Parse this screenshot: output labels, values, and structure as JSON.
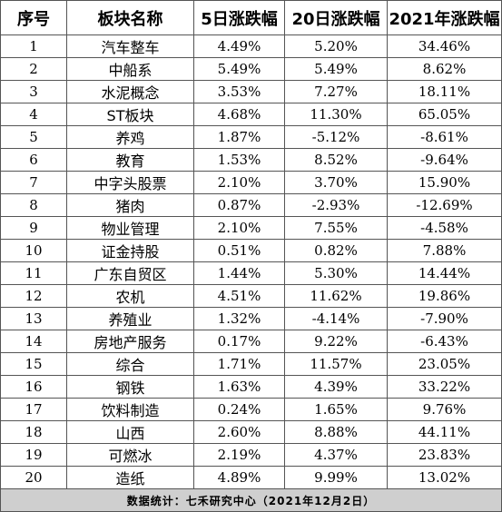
{
  "headers": [
    "序号",
    "板块名称",
    "5日涨跌幅",
    "20日涨跌幅",
    "2021年涨跌幅"
  ],
  "rows": [
    {
      "no": "1",
      "name": "汽车整车",
      "d5": "4.49%",
      "d20": "5.20%",
      "y2021": "34.46%"
    },
    {
      "no": "2",
      "name": "中船系",
      "d5": "5.49%",
      "d20": "5.49%",
      "y2021": "8.62%"
    },
    {
      "no": "3",
      "name": "水泥概念",
      "d5": "3.53%",
      "d20": "7.27%",
      "y2021": "18.11%"
    },
    {
      "no": "4",
      "name": "ST板块",
      "d5": "4.68%",
      "d20": "11.30%",
      "y2021": "65.05%"
    },
    {
      "no": "5",
      "name": "养鸡",
      "d5": "1.87%",
      "d20": "-5.12%",
      "y2021": "-8.61%"
    },
    {
      "no": "6",
      "name": "教育",
      "d5": "1.53%",
      "d20": "8.52%",
      "y2021": "-9.64%"
    },
    {
      "no": "7",
      "name": "中字头股票",
      "d5": "2.10%",
      "d20": "3.70%",
      "y2021": "15.90%"
    },
    {
      "no": "8",
      "name": "猪肉",
      "d5": "0.87%",
      "d20": "-2.93%",
      "y2021": "-12.69%"
    },
    {
      "no": "9",
      "name": "物业管理",
      "d5": "2.10%",
      "d20": "7.55%",
      "y2021": "-4.58%"
    },
    {
      "no": "10",
      "name": "证金持股",
      "d5": "0.51%",
      "d20": "0.82%",
      "y2021": "7.88%"
    },
    {
      "no": "11",
      "name": "广东自贸区",
      "d5": "1.44%",
      "d20": "5.30%",
      "y2021": "14.44%"
    },
    {
      "no": "12",
      "name": "农机",
      "d5": "4.51%",
      "d20": "11.62%",
      "y2021": "19.86%"
    },
    {
      "no": "13",
      "name": "养殖业",
      "d5": "1.32%",
      "d20": "-4.14%",
      "y2021": "-7.90%"
    },
    {
      "no": "14",
      "name": "房地产服务",
      "d5": "0.17%",
      "d20": "9.22%",
      "y2021": "-6.43%"
    },
    {
      "no": "15",
      "name": "综合",
      "d5": "1.71%",
      "d20": "11.57%",
      "y2021": "23.05%"
    },
    {
      "no": "16",
      "name": "钢铁",
      "d5": "1.63%",
      "d20": "4.39%",
      "y2021": "33.22%"
    },
    {
      "no": "17",
      "name": "饮料制造",
      "d5": "0.24%",
      "d20": "1.65%",
      "y2021": "9.76%"
    },
    {
      "no": "18",
      "name": "山西",
      "d5": "2.60%",
      "d20": "8.88%",
      "y2021": "44.11%"
    },
    {
      "no": "19",
      "name": "可燃冰",
      "d5": "2.19%",
      "d20": "4.37%",
      "y2021": "23.83%"
    },
    {
      "no": "20",
      "name": "造纸",
      "d5": "4.89%",
      "d20": "9.99%",
      "y2021": "13.02%"
    }
  ],
  "footer": "数据统计：七禾研究中心（2021年12月2日）"
}
